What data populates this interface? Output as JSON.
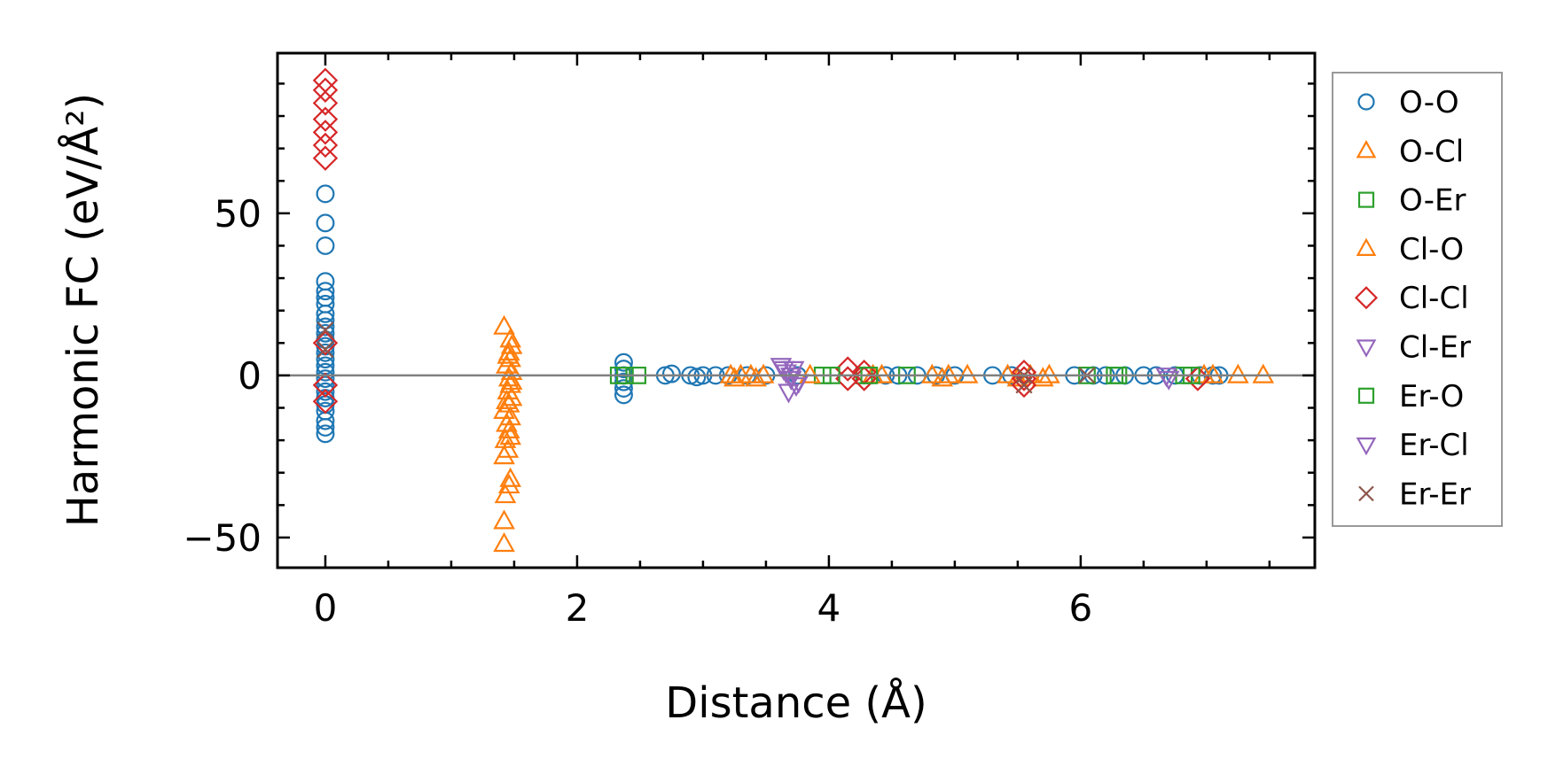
{
  "chart_data": {
    "type": "scatter",
    "title": "",
    "xlabel": "Distance (Å)",
    "ylabel": "Harmonic FC (eV/Å²)",
    "xlim": [
      -0.38,
      7.86
    ],
    "ylim": [
      -59.3,
      99.4
    ],
    "xticks": [
      0,
      2,
      4,
      6
    ],
    "xtick_labels": [
      "0",
      "2",
      "4",
      "6"
    ],
    "yticks": [
      -50,
      0,
      50
    ],
    "ytick_labels": [
      "−50",
      "0",
      "50"
    ],
    "x_minor_step": 0.5,
    "y_minor_step": 10,
    "reference_line": {
      "y": 0,
      "color": "#808080"
    },
    "grid": false,
    "legend_position": "outside-right",
    "series": [
      {
        "name": "O-O",
        "marker": "circle",
        "color": "#1f77b4",
        "points": [
          [
            0,
            56
          ],
          [
            0,
            47
          ],
          [
            0,
            40
          ],
          [
            0,
            29
          ],
          [
            0,
            26
          ],
          [
            0,
            24
          ],
          [
            0,
            22
          ],
          [
            0,
            19
          ],
          [
            0,
            17
          ],
          [
            0,
            15
          ],
          [
            0,
            13
          ],
          [
            0,
            11
          ],
          [
            0,
            9
          ],
          [
            0,
            7
          ],
          [
            0,
            5
          ],
          [
            0,
            3
          ],
          [
            0,
            1
          ],
          [
            0,
            -1
          ],
          [
            0,
            -3
          ],
          [
            0,
            -5
          ],
          [
            0,
            -7
          ],
          [
            0,
            -9
          ],
          [
            0,
            -11
          ],
          [
            0,
            -14
          ],
          [
            0,
            -16
          ],
          [
            0,
            -18
          ],
          [
            2.37,
            4
          ],
          [
            2.37,
            2
          ],
          [
            2.37,
            0
          ],
          [
            2.37,
            -2
          ],
          [
            2.37,
            -4
          ],
          [
            2.37,
            -6
          ],
          [
            2.7,
            0
          ],
          [
            2.75,
            0.5
          ],
          [
            2.9,
            0
          ],
          [
            2.95,
            -0.5
          ],
          [
            3.0,
            0
          ],
          [
            3.1,
            0
          ],
          [
            3.2,
            0
          ],
          [
            3.35,
            0
          ],
          [
            3.5,
            0
          ],
          [
            3.75,
            0
          ],
          [
            4.45,
            0
          ],
          [
            4.55,
            0
          ],
          [
            4.7,
            0
          ],
          [
            4.85,
            0
          ],
          [
            5.0,
            0
          ],
          [
            5.3,
            0
          ],
          [
            5.45,
            0
          ],
          [
            5.95,
            0
          ],
          [
            6.1,
            0
          ],
          [
            6.2,
            0
          ],
          [
            6.35,
            0
          ],
          [
            6.5,
            0
          ],
          [
            6.6,
            0
          ],
          [
            6.75,
            0
          ],
          [
            6.95,
            0
          ],
          [
            7.05,
            0
          ],
          [
            7.1,
            0
          ]
        ]
      },
      {
        "name": "O-Cl",
        "marker": "triangle-up",
        "color": "#ff7f0e",
        "points": [
          [
            1.42,
            15
          ],
          [
            1.47,
            11
          ],
          [
            1.48,
            9
          ],
          [
            1.46,
            7
          ],
          [
            1.47,
            5
          ],
          [
            1.44,
            3
          ],
          [
            1.48,
            1
          ],
          [
            1.46,
            -1
          ],
          [
            1.47,
            -3
          ],
          [
            1.45,
            -5
          ],
          [
            1.48,
            -7
          ],
          [
            1.46,
            -9
          ],
          [
            1.42,
            -11
          ],
          [
            1.47,
            -13
          ],
          [
            1.44,
            -15
          ],
          [
            1.46,
            -17
          ],
          [
            1.43,
            -20
          ],
          [
            1.45,
            -23
          ],
          [
            1.42,
            -25
          ],
          [
            1.47,
            -32
          ],
          [
            1.46,
            -34
          ],
          [
            1.43,
            -37
          ],
          [
            1.42,
            -45
          ],
          [
            1.42,
            -52
          ],
          [
            3.22,
            0
          ],
          [
            3.3,
            0
          ],
          [
            3.38,
            0
          ],
          [
            3.48,
            0
          ],
          [
            4.42,
            0
          ],
          [
            4.82,
            0
          ],
          [
            4.95,
            0
          ],
          [
            5.1,
            0
          ],
          [
            5.42,
            0
          ],
          [
            5.6,
            0
          ],
          [
            5.75,
            0
          ],
          [
            7.05,
            0
          ],
          [
            7.25,
            0
          ],
          [
            7.45,
            0
          ]
        ]
      },
      {
        "name": "O-Er",
        "marker": "square",
        "color": "#2ca02c",
        "points": [
          [
            2.33,
            0
          ],
          [
            2.48,
            0
          ],
          [
            3.95,
            0
          ],
          [
            4.28,
            0
          ],
          [
            4.62,
            0
          ],
          [
            6.05,
            0
          ],
          [
            6.27,
            0
          ],
          [
            6.82,
            0
          ]
        ]
      },
      {
        "name": "Cl-O",
        "marker": "triangle-up",
        "color": "#ff7f0e",
        "points": [
          [
            1.45,
            6
          ],
          [
            1.48,
            -2
          ],
          [
            1.44,
            -8
          ],
          [
            1.47,
            -19
          ],
          [
            3.25,
            -1
          ],
          [
            3.42,
            -1
          ],
          [
            3.85,
            0
          ],
          [
            4.35,
            0
          ],
          [
            4.9,
            -1
          ],
          [
            5.5,
            -1
          ],
          [
            5.7,
            -1
          ],
          [
            6.98,
            0
          ]
        ]
      },
      {
        "name": "Cl-Cl",
        "marker": "diamond",
        "color": "#d62728",
        "points": [
          [
            0,
            91
          ],
          [
            0,
            88
          ],
          [
            0,
            84
          ],
          [
            0,
            79
          ],
          [
            0,
            75
          ],
          [
            0,
            71
          ],
          [
            0,
            67
          ],
          [
            0,
            10
          ],
          [
            0,
            -3
          ],
          [
            0,
            -8
          ],
          [
            4.15,
            2
          ],
          [
            4.15,
            -1
          ],
          [
            4.28,
            1
          ],
          [
            4.28,
            -1
          ],
          [
            5.55,
            1
          ],
          [
            5.55,
            -1
          ],
          [
            5.55,
            -3
          ],
          [
            6.93,
            -1
          ]
        ]
      },
      {
        "name": "Cl-Er",
        "marker": "triangle-down",
        "color": "#9467bd",
        "points": [
          [
            3.62,
            3
          ],
          [
            3.66,
            1
          ],
          [
            3.7,
            -1
          ],
          [
            3.74,
            -3
          ],
          [
            3.68,
            -5
          ],
          [
            3.72,
            2
          ],
          [
            6.7,
            -1
          ]
        ]
      },
      {
        "name": "Er-O",
        "marker": "square",
        "color": "#2ca02c",
        "points": [
          [
            2.38,
            0
          ],
          [
            4.02,
            0
          ],
          [
            4.32,
            0
          ],
          [
            6.3,
            0
          ],
          [
            6.88,
            0
          ]
        ]
      },
      {
        "name": "Er-Cl",
        "marker": "triangle-down",
        "color": "#9467bd",
        "points": [
          [
            3.64,
            2
          ],
          [
            3.7,
            0
          ],
          [
            3.76,
            -2
          ],
          [
            6.68,
            0
          ]
        ]
      },
      {
        "name": "Er-Er",
        "marker": "x",
        "color": "#8c564b",
        "points": [
          [
            0,
            14
          ],
          [
            0,
            8
          ],
          [
            5.55,
            0
          ],
          [
            5.55,
            -3
          ],
          [
            6.05,
            0
          ]
        ]
      }
    ]
  }
}
